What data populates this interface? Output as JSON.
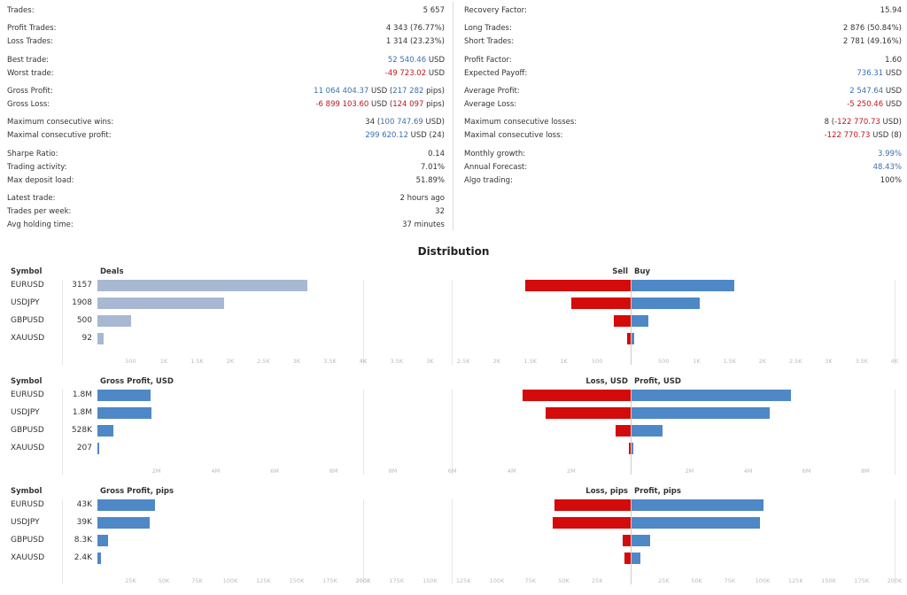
{
  "stats_left": [
    {
      "label": "Trades:",
      "value": "5 657"
    },
    {
      "label": "Profit Trades:",
      "value": "4 343 (76.77%)"
    },
    {
      "label": "Loss Trades:",
      "value": "1 314 (23.23%)"
    },
    {
      "label": "Best trade:",
      "value": "52 540.46",
      "unit": " USD",
      "cls": "pos"
    },
    {
      "label": "Worst trade:",
      "value": "-49 723.02",
      "unit": " USD",
      "cls": "neg"
    },
    {
      "label": "Gross Profit:",
      "value": "11 064 404.37",
      "unit": " USD (",
      "v2": "217 282",
      "u2": " pips)",
      "cls": "pos"
    },
    {
      "label": "Gross Loss:",
      "value": "-6 899 103.60",
      "unit": " USD (",
      "v2": "124 097",
      "u2": " pips)",
      "cls": "neg"
    },
    {
      "label": "Maximum consecutive wins:",
      "pre": "34 (",
      "value": "100 747.69",
      "unit": " USD)",
      "cls": "pos"
    },
    {
      "label": "Maximal consecutive profit:",
      "value": "299 620.12",
      "unit": " USD (24)",
      "cls": "pos"
    },
    {
      "label": "Sharpe Ratio:",
      "value": "0.14"
    },
    {
      "label": "Trading activity:",
      "value": "7.01%"
    },
    {
      "label": "Max deposit load:",
      "value": "51.89%"
    },
    {
      "label": "Latest trade:",
      "value": "2 hours ago"
    },
    {
      "label": "Trades per week:",
      "value": "32"
    },
    {
      "label": "Avg holding time:",
      "value": "37 minutes"
    }
  ],
  "stats_right": [
    {
      "label": "Recovery Factor:",
      "value": "15.94"
    },
    {
      "label": "Long Trades:",
      "value": "2 876 (50.84%)"
    },
    {
      "label": "Short Trades:",
      "value": "2 781 (49.16%)"
    },
    {
      "label": "Profit Factor:",
      "value": "1.60"
    },
    {
      "label": "Expected Payoff:",
      "value": "736.31",
      "unit": " USD",
      "cls": "pos"
    },
    {
      "label": "Average Profit:",
      "value": "2 547.64",
      "unit": " USD",
      "cls": "pos"
    },
    {
      "label": "Average Loss:",
      "value": "-5 250.46",
      "unit": " USD",
      "cls": "neg"
    },
    {
      "label": "Maximum consecutive losses:",
      "pre": "8 (",
      "value": "-122 770.73",
      "unit": " USD)",
      "cls": "neg"
    },
    {
      "label": "Maximal consecutive loss:",
      "value": "-122 770.73",
      "unit": " USD (8)",
      "cls": "neg"
    },
    {
      "label": "Monthly growth:",
      "value": "3.99%",
      "cls": "pos"
    },
    {
      "label": "Annual Forecast:",
      "value": "48.43%",
      "cls": "pos"
    },
    {
      "label": "Algo trading:",
      "value": "100%"
    }
  ],
  "distribution_title": "Distribution",
  "colors": {
    "deals": "#a9b8d2",
    "buy": "#4f88c6",
    "sell": "#d40b0b",
    "grid": "#e6e6e6"
  },
  "chart_data": [
    {
      "type": "bar",
      "symbol_header": "Symbol",
      "left_header": "Deals",
      "left_color": "deals",
      "categories": [
        "EURUSD",
        "USDJPY",
        "GBPUSD",
        "XAUUSD"
      ],
      "left_labels": [
        "3157",
        "1908",
        "500",
        "92"
      ],
      "left_values": [
        3157,
        1908,
        500,
        92
      ],
      "left_max": 4000,
      "left_ticks": [
        {
          "v": 500,
          "t": "500"
        },
        {
          "v": 1000,
          "t": "1K"
        },
        {
          "v": 1500,
          "t": "1.5K"
        },
        {
          "v": 2000,
          "t": "2K"
        },
        {
          "v": 2500,
          "t": "2.5K"
        },
        {
          "v": 3000,
          "t": "3K"
        },
        {
          "v": 3500,
          "t": "3.5K"
        },
        {
          "v": 4000,
          "t": "4K"
        }
      ],
      "neg_header": "Sell",
      "pos_header": "Buy",
      "neg_values": [
        1580,
        890,
        250,
        50
      ],
      "pos_values": [
        1560,
        1040,
        260,
        42
      ],
      "lr_max": 4000,
      "neg_ticks": [
        {
          "v": 4000,
          "t": "4K"
        },
        {
          "v": 3500,
          "t": "3.5K"
        },
        {
          "v": 3000,
          "t": "3K"
        },
        {
          "v": 2500,
          "t": "2.5K"
        },
        {
          "v": 2000,
          "t": "2K"
        },
        {
          "v": 1500,
          "t": "1.5K"
        },
        {
          "v": 1000,
          "t": "1K"
        },
        {
          "v": 500,
          "t": "500"
        }
      ],
      "pos_ticks": [
        {
          "v": 500,
          "t": "500"
        },
        {
          "v": 1000,
          "t": "1K"
        },
        {
          "v": 1500,
          "t": "1.5K"
        },
        {
          "v": 2000,
          "t": "2K"
        },
        {
          "v": 2500,
          "t": "2.5K"
        },
        {
          "v": 3000,
          "t": "3K"
        },
        {
          "v": 3500,
          "t": "3.5K"
        },
        {
          "v": 4000,
          "t": "4K"
        }
      ]
    },
    {
      "type": "bar",
      "symbol_header": "Symbol",
      "left_header": "Gross Profit, USD",
      "left_color": "buy",
      "categories": [
        "EURUSD",
        "USDJPY",
        "GBPUSD",
        "XAUUSD"
      ],
      "left_labels": [
        "1.8M",
        "1.8M",
        "528K",
        "207"
      ],
      "left_values": [
        1800000,
        1830000,
        528000,
        207
      ],
      "left_max": 9000000,
      "left_ticks": [
        {
          "v": 2000000,
          "t": "2M"
        },
        {
          "v": 4000000,
          "t": "4M"
        },
        {
          "v": 6000000,
          "t": "6M"
        },
        {
          "v": 8000000,
          "t": "8M"
        }
      ],
      "neg_header": "Loss, USD",
      "pos_header": "Profit, USD",
      "neg_values": [
        3640000,
        2850000,
        520000,
        60000
      ],
      "pos_values": [
        5450000,
        4720000,
        1060000,
        60000
      ],
      "lr_max": 9000000,
      "neg_ticks": [
        {
          "v": 8000000,
          "t": "8M"
        },
        {
          "v": 6000000,
          "t": "6M"
        },
        {
          "v": 4000000,
          "t": "4M"
        },
        {
          "v": 2000000,
          "t": "2M"
        }
      ],
      "pos_ticks": [
        {
          "v": 2000000,
          "t": "2M"
        },
        {
          "v": 4000000,
          "t": "4M"
        },
        {
          "v": 6000000,
          "t": "6M"
        },
        {
          "v": 8000000,
          "t": "8M"
        }
      ]
    },
    {
      "type": "bar",
      "symbol_header": "Symbol",
      "left_header": "Gross Profit, pips",
      "left_color": "buy",
      "categories": [
        "EURUSD",
        "USDJPY",
        "GBPUSD",
        "XAUUSD"
      ],
      "left_labels": [
        "43K",
        "39K",
        "8.3K",
        "2.4K"
      ],
      "left_values": [
        43000,
        39000,
        8300,
        2400
      ],
      "left_max": 200000,
      "left_ticks": [
        {
          "v": 25000,
          "t": "25K"
        },
        {
          "v": 50000,
          "t": "50K"
        },
        {
          "v": 75000,
          "t": "75K"
        },
        {
          "v": 100000,
          "t": "100K"
        },
        {
          "v": 125000,
          "t": "125K"
        },
        {
          "v": 150000,
          "t": "150K"
        },
        {
          "v": 175000,
          "t": "175K"
        },
        {
          "v": 200000,
          "t": "200K"
        }
      ],
      "neg_header": "Loss, pips",
      "pos_header": "Profit, pips",
      "neg_values": [
        57000,
        58000,
        6000,
        4500
      ],
      "pos_values": [
        100000,
        97000,
        14000,
        6500
      ],
      "lr_max": 200000,
      "neg_ticks": [
        {
          "v": 200000,
          "t": "200K"
        },
        {
          "v": 175000,
          "t": "175K"
        },
        {
          "v": 150000,
          "t": "150K"
        },
        {
          "v": 125000,
          "t": "125K"
        },
        {
          "v": 100000,
          "t": "100K"
        },
        {
          "v": 75000,
          "t": "75K"
        },
        {
          "v": 50000,
          "t": "50K"
        },
        {
          "v": 25000,
          "t": "25K"
        }
      ],
      "pos_ticks": [
        {
          "v": 25000,
          "t": "25K"
        },
        {
          "v": 50000,
          "t": "50K"
        },
        {
          "v": 75000,
          "t": "75K"
        },
        {
          "v": 100000,
          "t": "100K"
        },
        {
          "v": 125000,
          "t": "125K"
        },
        {
          "v": 150000,
          "t": "150K"
        },
        {
          "v": 175000,
          "t": "175K"
        },
        {
          "v": 200000,
          "t": "200K"
        }
      ]
    }
  ]
}
